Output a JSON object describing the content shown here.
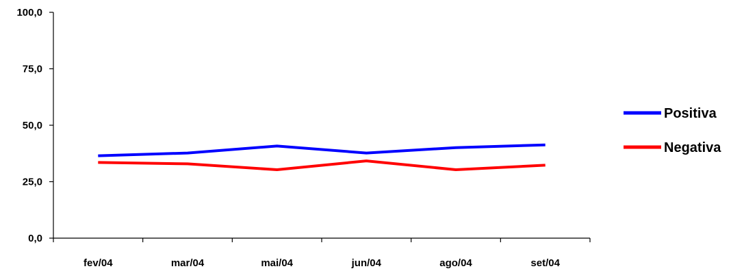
{
  "chart_data": {
    "type": "line",
    "categories": [
      "fev/04",
      "mar/04",
      "mai/04",
      "jun/04",
      "ago/04",
      "set/04"
    ],
    "series": [
      {
        "name": "Positiva",
        "color": "#0000ff",
        "values": [
          36.5,
          37.7,
          40.8,
          37.7,
          40.1,
          41.3
        ]
      },
      {
        "name": "Negativa",
        "color": "#ff0000",
        "values": [
          33.5,
          32.9,
          30.3,
          34.2,
          30.3,
          32.3
        ]
      }
    ],
    "y_ticks": [
      "0,0",
      "25,0",
      "50,0",
      "75,0",
      "100,0"
    ],
    "y_tick_values": [
      0,
      25,
      50,
      75,
      100
    ],
    "ylim": [
      0,
      100
    ],
    "grid": false,
    "legend_position": "right"
  }
}
